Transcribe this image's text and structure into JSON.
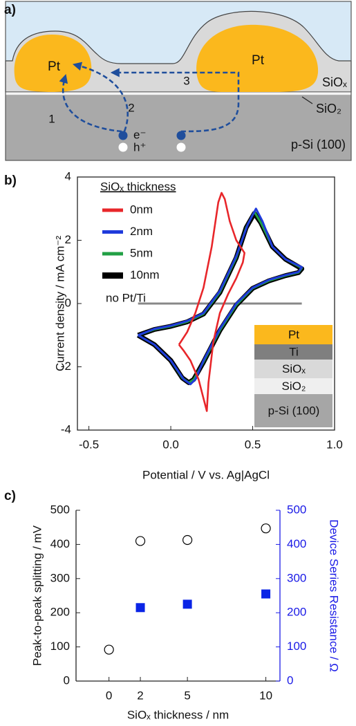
{
  "diagram": {
    "panel_label": "a)",
    "pt_left": "Pt",
    "pt_right": "Pt",
    "siox": "SiOₓ",
    "sio2": "SiO₂",
    "substrate": "p-Si (100)",
    "path_1": "1",
    "path_2": "2",
    "path_3": "3",
    "electron": "e⁻",
    "hole": "h⁺"
  },
  "chart_data": [
    {
      "type": "line",
      "panel_label": "b)",
      "xlabel": "Potential / V vs. Ag|AgCl",
      "ylabel": "Current density / mA cm⁻²",
      "legend_title": "SiOₓ thickness",
      "legend": "upper left",
      "xlim": [
        -0.57,
        1.0
      ],
      "xticks": [
        -0.5,
        {
          "value": 0,
          "label": "0.0"
        },
        0.5,
        {
          "value": 1,
          "label": "1.0"
        }
      ],
      "ylim": [
        -4,
        4
      ],
      "yticks": [
        -4,
        -2,
        0,
        2,
        4
      ],
      "grid": false,
      "inset_layers": [
        "Pt",
        "Ti",
        "SiOₓ",
        "SiO₂",
        "p-Si (100)"
      ],
      "series": [
        {
          "name": "0nm",
          "color": "#e8262a",
          "x": [
            0.05,
            0.1,
            0.15,
            0.2,
            0.25,
            0.29,
            0.31,
            0.33,
            0.36,
            0.4,
            0.45,
            0.44,
            0.4,
            0.35,
            0.3,
            0.26,
            0.23,
            0.22,
            0.2,
            0.17,
            0.12,
            0.08,
            0.05
          ],
          "values": [
            -1.3,
            -0.9,
            -0.3,
            0.5,
            1.8,
            3.2,
            3.5,
            3.3,
            2.6,
            2.0,
            1.6,
            1.3,
            0.8,
            0.3,
            -0.3,
            -1.2,
            -2.5,
            -3.4,
            -3.0,
            -2.4,
            -1.8,
            -1.5,
            -1.3
          ]
        },
        {
          "name": "2nm",
          "color": "#1f3bdb",
          "x": [
            -0.2,
            -0.1,
            0.0,
            0.1,
            0.2,
            0.3,
            0.4,
            0.47,
            0.52,
            0.56,
            0.62,
            0.7,
            0.8,
            0.78,
            0.7,
            0.6,
            0.5,
            0.4,
            0.3,
            0.2,
            0.15,
            0.12,
            0.08,
            0.0,
            -0.1,
            -0.2
          ],
          "values": [
            -1.0,
            -0.8,
            -0.7,
            -0.55,
            -0.3,
            0.4,
            1.5,
            2.5,
            3.0,
            2.6,
            1.8,
            1.4,
            1.15,
            1.0,
            0.9,
            0.75,
            0.5,
            0.0,
            -0.8,
            -1.8,
            -2.4,
            -2.55,
            -2.4,
            -1.8,
            -1.3,
            -1.0
          ]
        },
        {
          "name": "5nm",
          "color": "#22a045",
          "x": [
            -0.2,
            -0.1,
            0.0,
            0.1,
            0.2,
            0.3,
            0.4,
            0.46,
            0.51,
            0.55,
            0.62,
            0.7,
            0.8,
            0.78,
            0.7,
            0.6,
            0.5,
            0.4,
            0.3,
            0.2,
            0.14,
            0.11,
            0.07,
            0.0,
            -0.1,
            -0.2
          ],
          "values": [
            -1.0,
            -0.82,
            -0.72,
            -0.58,
            -0.33,
            0.35,
            1.45,
            2.4,
            2.9,
            2.55,
            1.8,
            1.4,
            1.12,
            0.98,
            0.88,
            0.72,
            0.48,
            -0.05,
            -0.85,
            -1.85,
            -2.4,
            -2.5,
            -2.35,
            -1.8,
            -1.3,
            -1.0
          ]
        },
        {
          "name": "10nm",
          "color": "#000000",
          "x": [
            -0.2,
            -0.1,
            0.0,
            0.1,
            0.2,
            0.3,
            0.4,
            0.46,
            0.51,
            0.55,
            0.62,
            0.7,
            0.8,
            0.78,
            0.7,
            0.6,
            0.5,
            0.4,
            0.3,
            0.2,
            0.14,
            0.11,
            0.07,
            0.0,
            -0.1,
            -0.2
          ],
          "values": [
            -1.0,
            -0.82,
            -0.72,
            -0.58,
            -0.33,
            0.35,
            1.45,
            2.4,
            2.85,
            2.55,
            1.8,
            1.4,
            1.1,
            0.98,
            0.88,
            0.72,
            0.48,
            -0.05,
            -0.85,
            -1.85,
            -2.4,
            -2.5,
            -2.35,
            -1.8,
            -1.3,
            -1.0
          ]
        },
        {
          "name": "no Pt/Ti",
          "color": "#888888",
          "x": [
            -0.2,
            0.8
          ],
          "values": [
            0,
            0
          ]
        }
      ]
    },
    {
      "type": "scatter",
      "panel_label": "c)",
      "xlabel": "SiOₓ thickness / nm",
      "ylabel": "Peak-to-peak splitting / mV",
      "y2label": "Device Series Resistance / Ω",
      "xlim": [
        -2.1,
        10.9
      ],
      "xticks": [
        0,
        2,
        5,
        10
      ],
      "ylim": [
        0,
        500
      ],
      "yticks": [
        0,
        100,
        200,
        300,
        400,
        500
      ],
      "y2lim": [
        0,
        500
      ],
      "y2ticks": [
        0,
        100,
        200,
        300,
        400,
        500
      ],
      "y2color": "#1a1ae6",
      "series": [
        {
          "color": "#000000",
          "marker": "open-circle",
          "x": [
            0,
            2,
            5,
            10
          ],
          "values": [
            92,
            410,
            413,
            447
          ]
        },
        {
          "color": "#0a24e6",
          "marker": "square",
          "axis": "y2",
          "x": [
            2,
            5,
            10
          ],
          "values": [
            215,
            225,
            255
          ]
        }
      ]
    }
  ]
}
